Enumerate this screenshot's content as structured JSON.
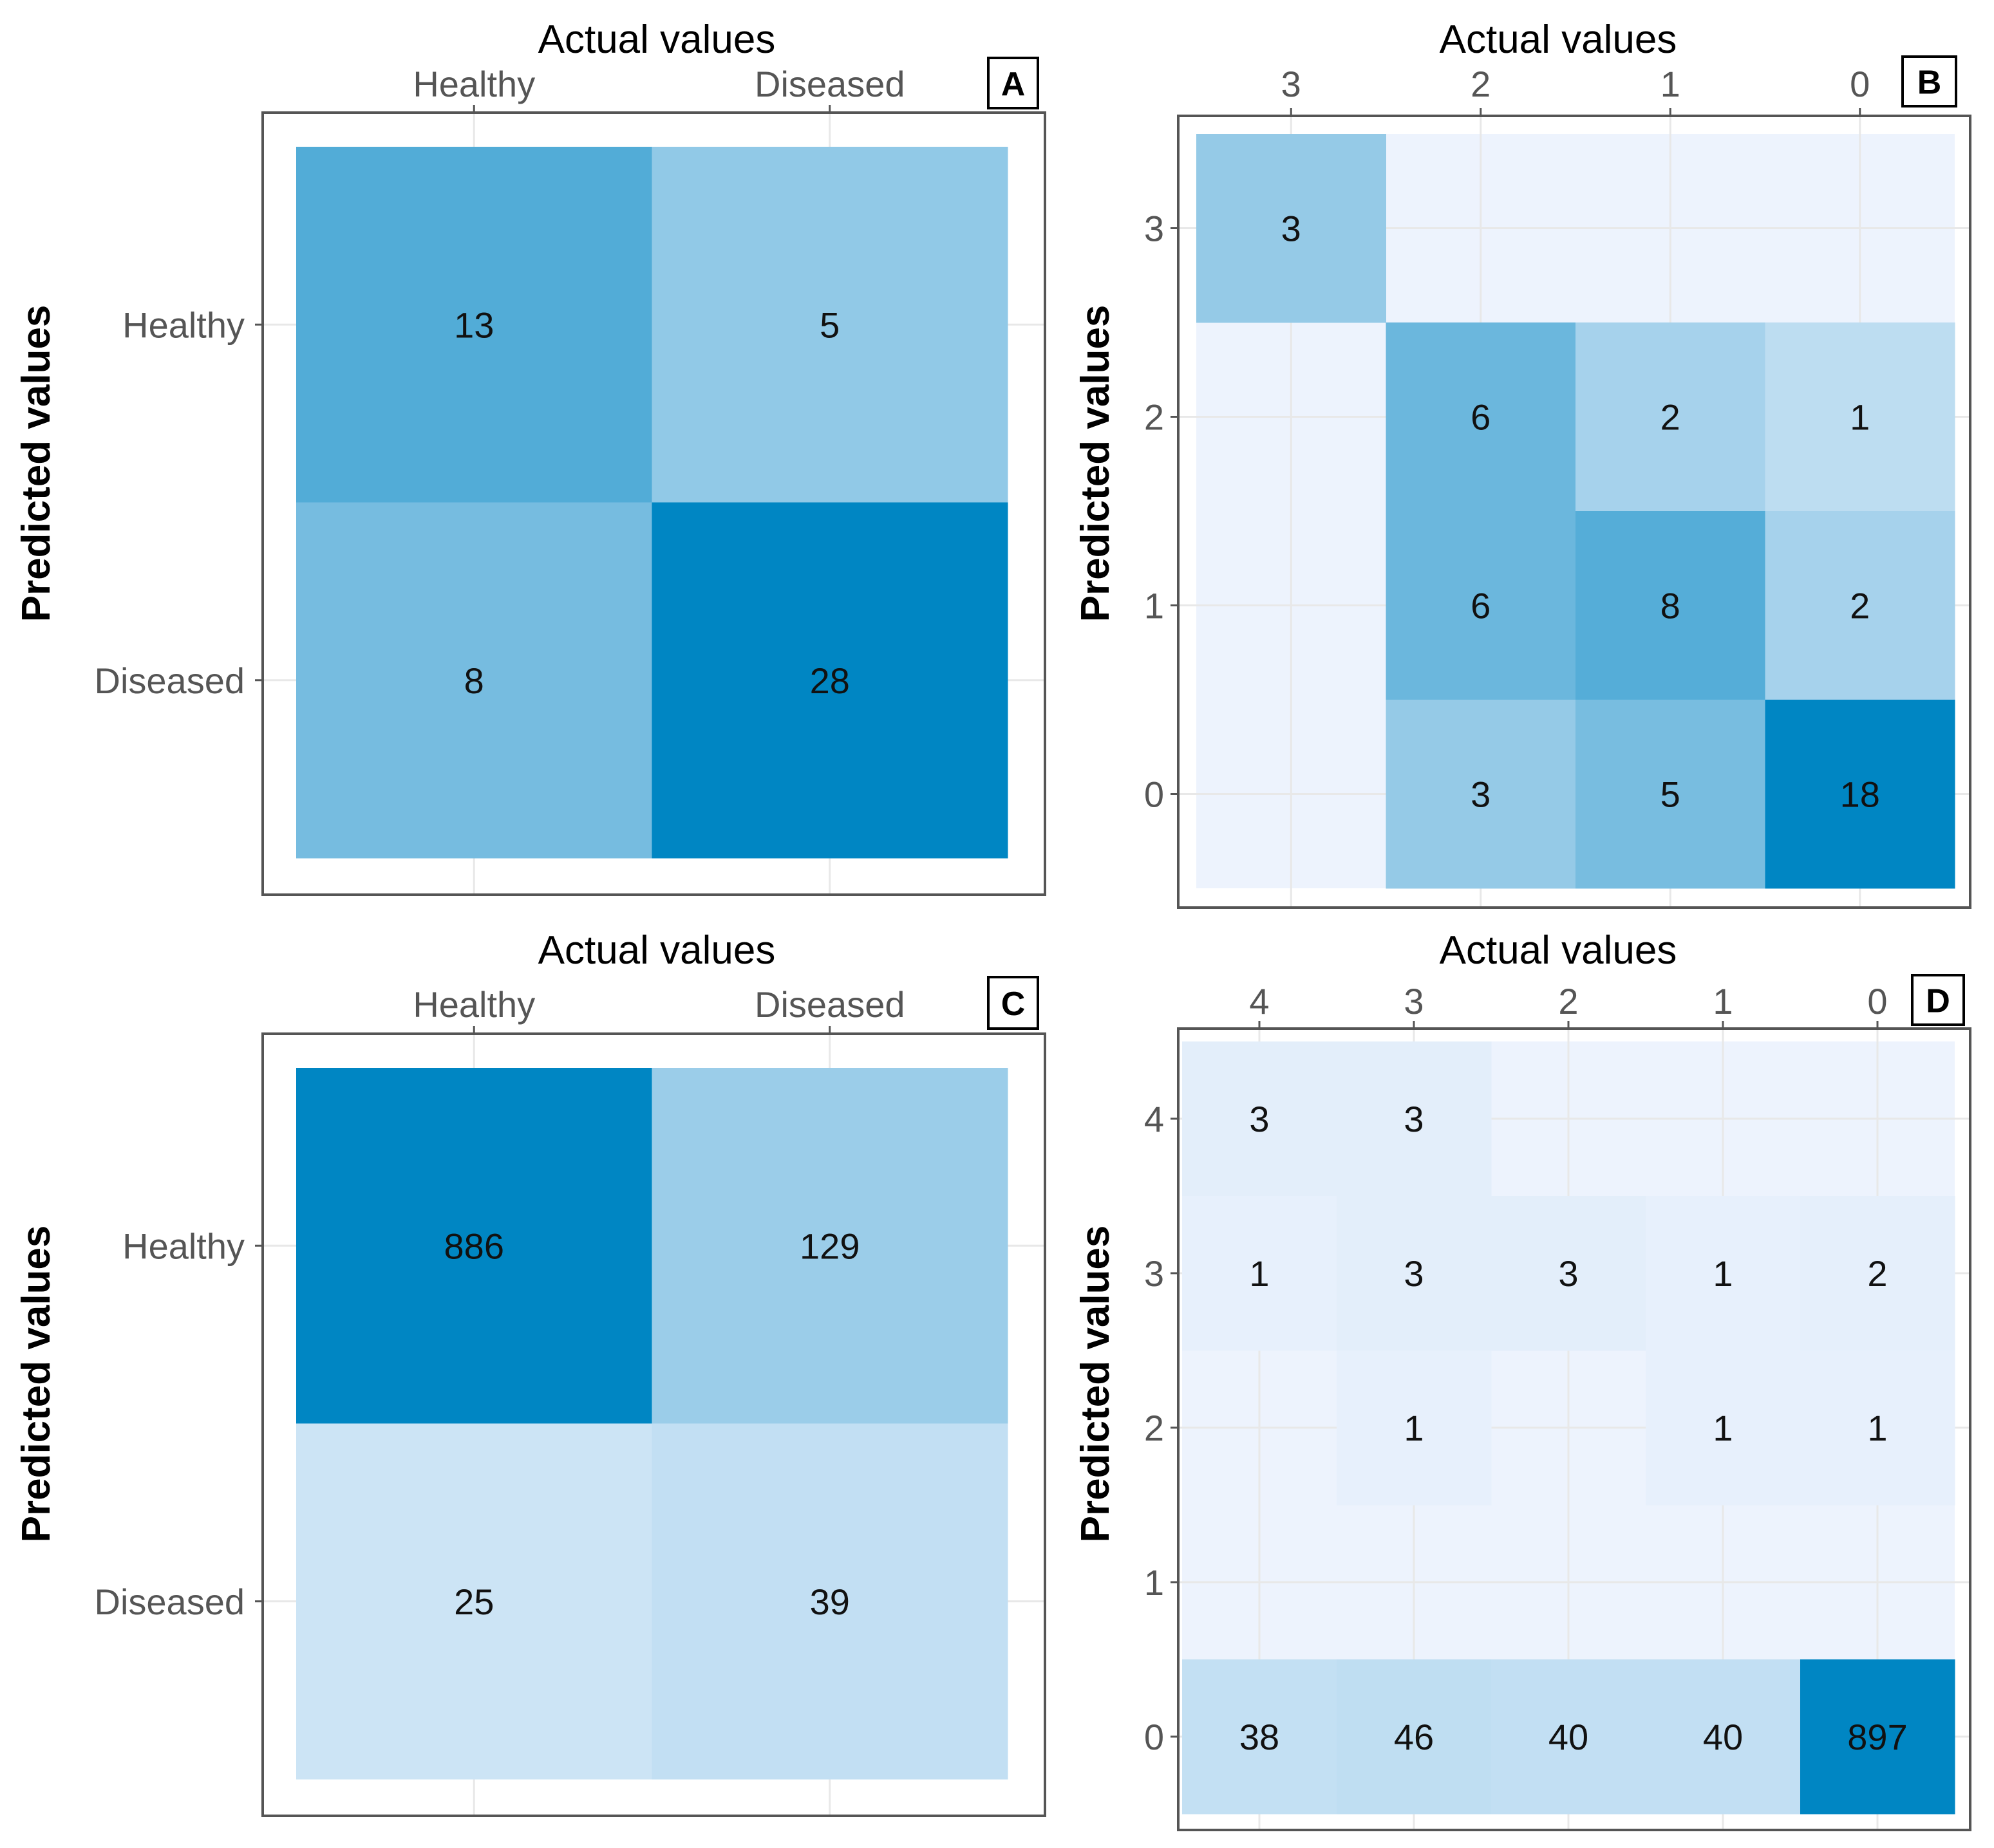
{
  "chart_data": [
    {
      "type": "heatmap",
      "panel": "A",
      "title": "Actual values",
      "ylabel": "Predicted values",
      "x_categories": [
        "Healthy",
        "Diseased"
      ],
      "y_categories": [
        "Healthy",
        "Diseased"
      ],
      "matrix": [
        [
          13,
          5
        ],
        [
          8,
          28
        ]
      ]
    },
    {
      "type": "heatmap",
      "panel": "B",
      "title": "Actual values",
      "ylabel": "Predicted values",
      "x_categories": [
        "3",
        "2",
        "1",
        "0"
      ],
      "y_categories": [
        "3",
        "2",
        "1",
        "0"
      ],
      "matrix": [
        [
          3,
          null,
          null,
          null
        ],
        [
          null,
          6,
          2,
          1
        ],
        [
          null,
          6,
          8,
          2
        ],
        [
          null,
          3,
          5,
          18
        ]
      ]
    },
    {
      "type": "heatmap",
      "panel": "C",
      "title": "Actual values",
      "ylabel": "Predicted values",
      "x_categories": [
        "Healthy",
        "Diseased"
      ],
      "y_categories": [
        "Healthy",
        "Diseased"
      ],
      "matrix": [
        [
          886,
          129
        ],
        [
          25,
          39
        ]
      ]
    },
    {
      "type": "heatmap",
      "panel": "D",
      "title": "Actual values",
      "ylabel": "Predicted values",
      "x_categories": [
        "4",
        "3",
        "2",
        "1",
        "0"
      ],
      "y_categories": [
        "4",
        "3",
        "2",
        "1",
        "0"
      ],
      "matrix": [
        [
          3,
          3,
          null,
          null,
          null
        ],
        [
          1,
          3,
          3,
          1,
          2
        ],
        [
          null,
          1,
          null,
          1,
          1
        ],
        [
          null,
          null,
          null,
          null,
          null
        ],
        [
          38,
          46,
          40,
          40,
          897
        ]
      ]
    }
  ],
  "colors": {
    "low": "#edf3fd",
    "high": "#0086c3",
    "frame": "#555555",
    "grid": "#e8e8e8"
  }
}
